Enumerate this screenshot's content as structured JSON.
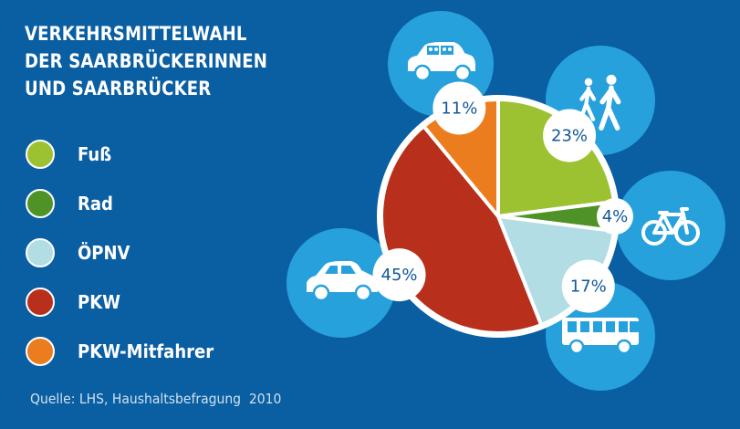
{
  "title_lines": [
    "VERKEHRSMITTELWAHL",
    "DER SAARBRÜCKERINNEN",
    "UND SAARBRÜCKER"
  ],
  "source": "Quelle: LHS, Haushaltsbefragung  2010",
  "colors": {
    "background": "#0a5ea2",
    "icon_circle": "#27a1dc",
    "white": "#ffffff",
    "label_text": "#12579a"
  },
  "chart_data": {
    "type": "pie",
    "title": "VERKEHRSMITTELWAHL DER SAARBRÜCKERINNEN UND SAARBRÜCKER",
    "legend_position": "left",
    "slices": [
      {
        "name": "Fuß",
        "value": 23,
        "label": "23%",
        "color": "#9dc231",
        "icon": "pedestrians-icon"
      },
      {
        "name": "Rad",
        "value": 4,
        "label": "4%",
        "color": "#4f9328",
        "icon": "bicycle-icon"
      },
      {
        "name": "ÖPNV",
        "value": 17,
        "label": "17%",
        "color": "#b2dde4",
        "icon": "bus-icon"
      },
      {
        "name": "PKW",
        "value": 45,
        "label": "45%",
        "color": "#b8301c",
        "icon": "car-icon"
      },
      {
        "name": "PKW-Mitfahrer",
        "value": 11,
        "label": "11%",
        "color": "#ec7d1f",
        "icon": "car-passengers-icon"
      }
    ]
  }
}
